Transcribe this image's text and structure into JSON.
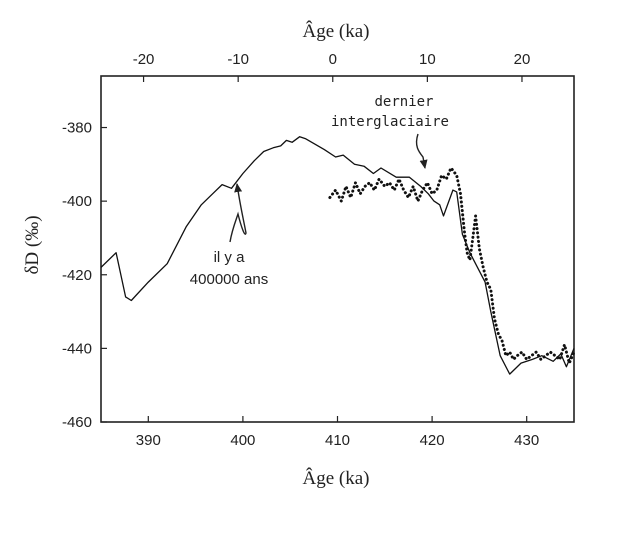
{
  "chart_data": {
    "type": "line",
    "top_axis": {
      "label": "Âge (ka)",
      "ticks": [
        -20,
        -10,
        0,
        10,
        20
      ],
      "tick_labels": [
        "-20",
        "-10",
        "0",
        "10",
        "20"
      ],
      "range": [
        -24.5,
        25.5
      ]
    },
    "xlabel": "Âge (ka)",
    "ylabel": "δD (‰)",
    "xlim": [
      385,
      435
    ],
    "ylim": [
      -460,
      -366
    ],
    "x_ticks": [
      390,
      400,
      410,
      420,
      430
    ],
    "x_tick_labels": [
      "390",
      "400",
      "410",
      "420",
      "430"
    ],
    "y_ticks": [
      -460,
      -440,
      -420,
      -400,
      -380
    ],
    "y_tick_labels": [
      "-460",
      "-440",
      "-420",
      "-400",
      "-380"
    ],
    "series": [
      {
        "style": "solid",
        "x": [
          385.0,
          386.6,
          387.6,
          388.2,
          390.0,
          392.0,
          394.0,
          395.6,
          396.8,
          397.8,
          398.8,
          400.0,
          401.2,
          402.2,
          403.2,
          404.0,
          404.6,
          405.2,
          406.0,
          406.6,
          407.6,
          408.6,
          409.8,
          410.6,
          411.8,
          412.8,
          413.8,
          414.6,
          416.2,
          417.6,
          418.8,
          419.6,
          420.2,
          420.8,
          421.2,
          422.2,
          422.6,
          423.2,
          424.0,
          424.8,
          425.6,
          426.2,
          427.2,
          428.2,
          429.4,
          430.6,
          431.6,
          432.8,
          433.6,
          434.2,
          435.0
        ],
        "y": [
          -418,
          -414,
          -426,
          -427,
          -422,
          -417,
          -407,
          -401,
          -398,
          -395.5,
          -396.5,
          -392.5,
          -389,
          -386.5,
          -385.5,
          -385,
          -383.5,
          -384,
          -382.5,
          -383,
          -384.5,
          -386,
          -388,
          -387.5,
          -390,
          -390.5,
          -392.5,
          -391,
          -393.5,
          -393.5,
          -396,
          -398,
          -400,
          -401,
          -404,
          -397,
          -397.5,
          -409,
          -414,
          -418,
          -422,
          -430,
          -442,
          -447,
          -444,
          -443,
          -442,
          -443.5,
          -441.5,
          -445,
          -440
        ]
      },
      {
        "style": "dotted",
        "x": [
          409.2,
          409.8,
          410.4,
          410.9,
          411.4,
          411.9,
          412.4,
          412.9,
          413.4,
          413.9,
          414.4,
          415.0,
          415.5,
          416.0,
          416.5,
          417.0,
          417.5,
          418.0,
          418.5,
          419.0,
          419.5,
          420.0,
          420.5,
          421.0,
          421.5,
          422.0,
          422.3,
          422.6,
          423.0,
          423.4,
          423.7,
          424.0,
          424.3,
          424.6,
          425.0,
          425.4,
          425.8,
          426.2,
          426.6,
          427.0,
          427.4,
          427.8,
          428.2,
          428.6,
          429.0,
          429.5,
          430.0,
          430.5,
          431.0,
          431.5,
          432.0,
          432.5,
          433.0,
          433.5,
          434.0,
          434.5,
          435.0
        ],
        "y": [
          -399,
          -397,
          -400,
          -396,
          -399,
          -395,
          -398,
          -396,
          -395,
          -397,
          -394,
          -396,
          -395,
          -397,
          -394,
          -397,
          -399,
          -396,
          -400,
          -397,
          -395,
          -398,
          -397,
          -393,
          -394,
          -391,
          -392,
          -393,
          -398,
          -408,
          -414,
          -416,
          -410,
          -404,
          -413,
          -418,
          -422,
          -424,
          -432,
          -436,
          -438,
          -442,
          -441,
          -443,
          -442,
          -441,
          -443,
          -442,
          -441,
          -443,
          -442,
          -441,
          -442,
          -443,
          -439,
          -444,
          -441
        ]
      }
    ],
    "annotations": [
      {
        "lines": [
          "dernier",
          "interglaciaire"
        ]
      },
      {
        "lines": [
          "il y a",
          "400000 ans"
        ]
      }
    ]
  }
}
